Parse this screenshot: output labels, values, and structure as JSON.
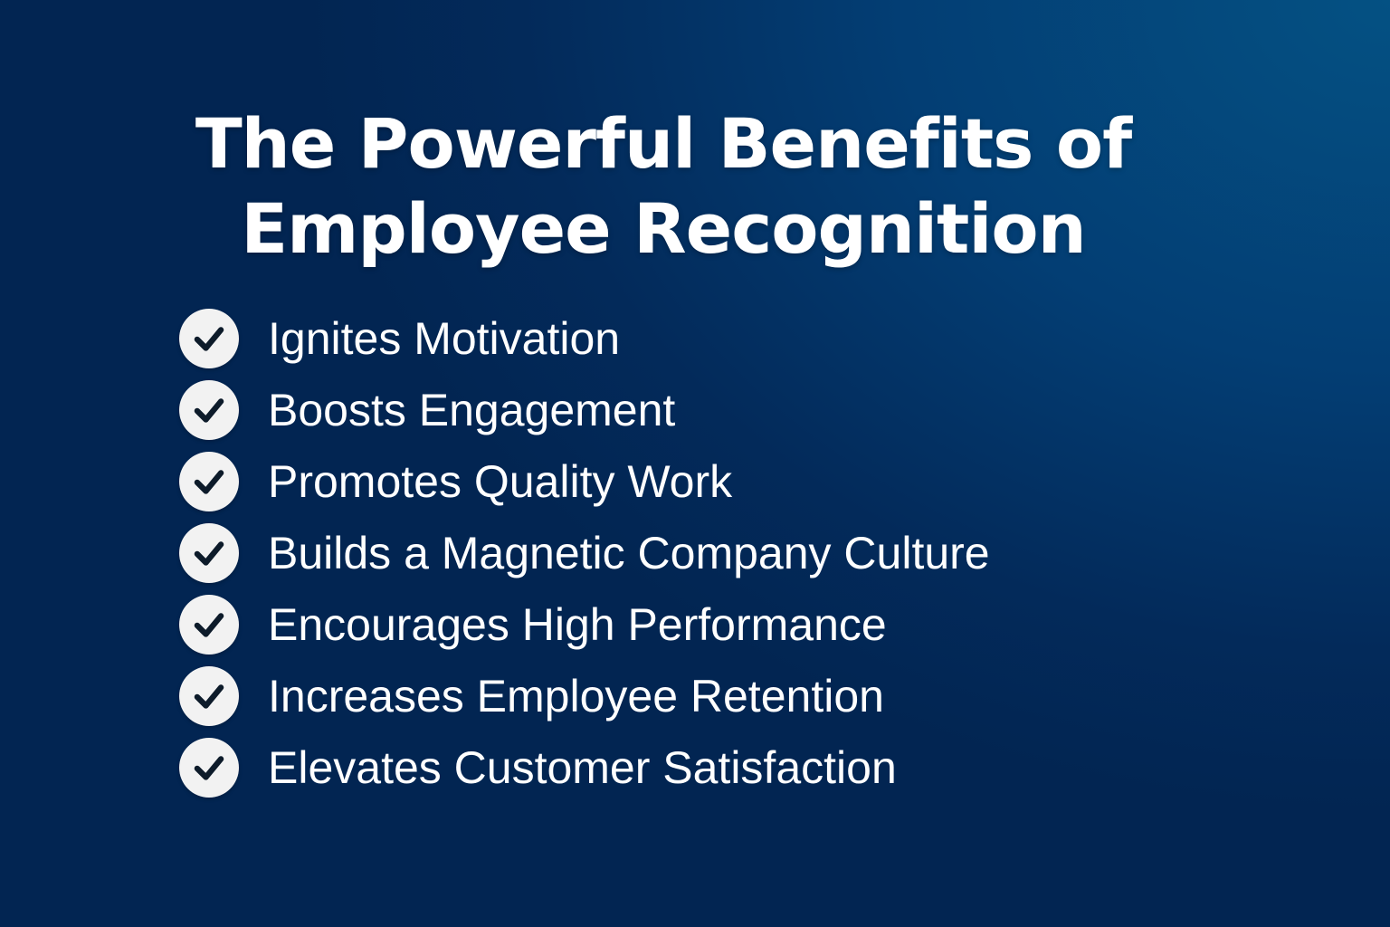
{
  "title": {
    "line1": "The Powerful Benefits of",
    "line2": "Employee Recognition"
  },
  "benefits": [
    {
      "label": "Ignites Motivation",
      "icon": "check-circle-icon"
    },
    {
      "label": "Boosts Engagement",
      "icon": "check-circle-icon"
    },
    {
      "label": "Promotes Quality Work",
      "icon": "check-circle-icon"
    },
    {
      "label": "Builds a Magnetic Company Culture",
      "icon": "check-circle-icon"
    },
    {
      "label": "Encourages High Performance",
      "icon": "check-circle-icon"
    },
    {
      "label": "Increases Employee Retention",
      "icon": "check-circle-icon"
    },
    {
      "label": "Elevates Customer Satisfaction",
      "icon": "check-circle-icon"
    }
  ],
  "colors": {
    "background_dark": "#022552",
    "background_light": "#045183",
    "text": "#ffffff",
    "check_circle": "#f2f2f2",
    "check_mark": "#0d1b2a"
  }
}
